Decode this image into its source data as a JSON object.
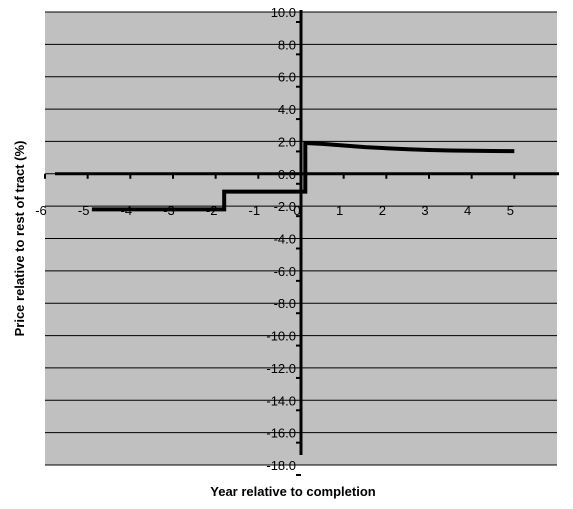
{
  "chart_data": {
    "type": "line",
    "title": "",
    "xlabel": "Year relative to completion",
    "ylabel": "Price relative to rest of tract (%)",
    "xlim": [
      -6,
      6
    ],
    "ylim": [
      -18,
      10
    ],
    "y_tick_step": 2,
    "x_ticks": [
      "-6",
      "-5",
      "-4",
      "-3",
      "-2",
      "-1",
      "0",
      "1",
      "2",
      "3",
      "4",
      "5"
    ],
    "y_ticks": [
      "10.0",
      "8.0",
      "6.0",
      "4.0",
      "2.0",
      "0.0",
      "-2.0",
      "-4.0",
      "-6.0",
      "-8.0",
      "-10.0",
      "-12.0",
      "-14.0",
      "-16.0",
      "-18.0"
    ],
    "grid": true,
    "legend": "none",
    "series": [
      {
        "color": "#000000",
        "points": [
          [
            -4.9,
            -2.2
          ],
          [
            -1.8,
            -2.2
          ],
          [
            -1.8,
            -1.1
          ],
          [
            0.1,
            -1.1
          ],
          [
            0.1,
            1.9
          ],
          [
            0.5,
            1.85
          ],
          [
            1.0,
            1.75
          ],
          [
            1.5,
            1.65
          ],
          [
            2.0,
            1.58
          ],
          [
            2.5,
            1.52
          ],
          [
            3.0,
            1.47
          ],
          [
            3.5,
            1.44
          ],
          [
            4.0,
            1.42
          ],
          [
            4.5,
            1.41
          ],
          [
            5.0,
            1.4
          ]
        ]
      }
    ],
    "colors": {
      "plot_bg": "#c0c0c0",
      "grid": "#000000",
      "axis": "#000000",
      "line": "#000000"
    }
  }
}
